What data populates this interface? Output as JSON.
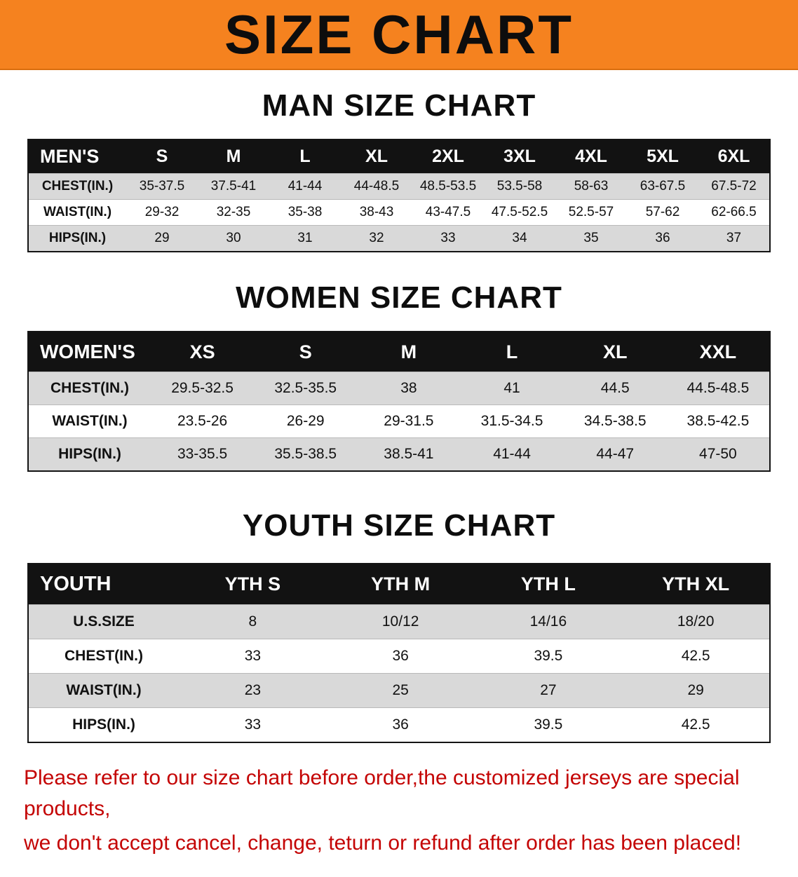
{
  "banner": {
    "title": "SIZE CHART",
    "bg_color": "#F5821F",
    "text_color": "#0d0d0d"
  },
  "colors": {
    "header_row_bg": "#121212",
    "header_row_text": "#ffffff",
    "alt_row_bg": "#d9d9d9",
    "notice_text": "#c40404"
  },
  "sections": [
    {
      "heading": "MAN SIZE CHART",
      "table": {
        "header": [
          "MEN'S",
          "S",
          "M",
          "L",
          "XL",
          "2XL",
          "3XL",
          "4XL",
          "5XL",
          "6XL"
        ],
        "rows": [
          {
            "label": "CHEST(IN.)",
            "values": [
              "35-37.5",
              "37.5-41",
              "41-44",
              "44-48.5",
              "48.5-53.5",
              "53.5-58",
              "58-63",
              "63-67.5",
              "67.5-72"
            ]
          },
          {
            "label": "WAIST(IN.)",
            "values": [
              "29-32",
              "32-35",
              "35-38",
              "38-43",
              "43-47.5",
              "47.5-52.5",
              "52.5-57",
              "57-62",
              "62-66.5"
            ]
          },
          {
            "label": "HIPS(IN.)",
            "values": [
              "29",
              "30",
              "31",
              "32",
              "33",
              "34",
              "35",
              "36",
              "37"
            ]
          }
        ]
      }
    },
    {
      "heading": "WOMEN SIZE CHART",
      "table": {
        "header": [
          "WOMEN'S",
          "XS",
          "S",
          "M",
          "L",
          "XL",
          "XXL"
        ],
        "rows": [
          {
            "label": "CHEST(IN.)",
            "values": [
              "29.5-32.5",
              "32.5-35.5",
              "38",
              "41",
              "44.5",
              "44.5-48.5"
            ]
          },
          {
            "label": "WAIST(IN.)",
            "values": [
              "23.5-26",
              "26-29",
              "29-31.5",
              "31.5-34.5",
              "34.5-38.5",
              "38.5-42.5"
            ]
          },
          {
            "label": "HIPS(IN.)",
            "values": [
              "33-35.5",
              "35.5-38.5",
              "38.5-41",
              "41-44",
              "44-47",
              "47-50"
            ]
          }
        ]
      }
    },
    {
      "heading": "YOUTH SIZE CHART",
      "table": {
        "header": [
          "YOUTH",
          "YTH S",
          "YTH M",
          "YTH L",
          "YTH XL"
        ],
        "rows": [
          {
            "label": "U.S.SIZE",
            "values": [
              "8",
              "10/12",
              "14/16",
              "18/20"
            ]
          },
          {
            "label": "CHEST(IN.)",
            "values": [
              "33",
              "36",
              "39.5",
              "42.5"
            ]
          },
          {
            "label": "WAIST(IN.)",
            "values": [
              "23",
              "25",
              "27",
              "29"
            ]
          },
          {
            "label": "HIPS(IN.)",
            "values": [
              "33",
              "36",
              "39.5",
              "42.5"
            ]
          }
        ]
      }
    }
  ],
  "footer": {
    "line1": "Please refer to our size chart before order,the customized jerseys are special products,",
    "line2": "we don't accept cancel, change, teturn or refund after order has been placed!"
  }
}
